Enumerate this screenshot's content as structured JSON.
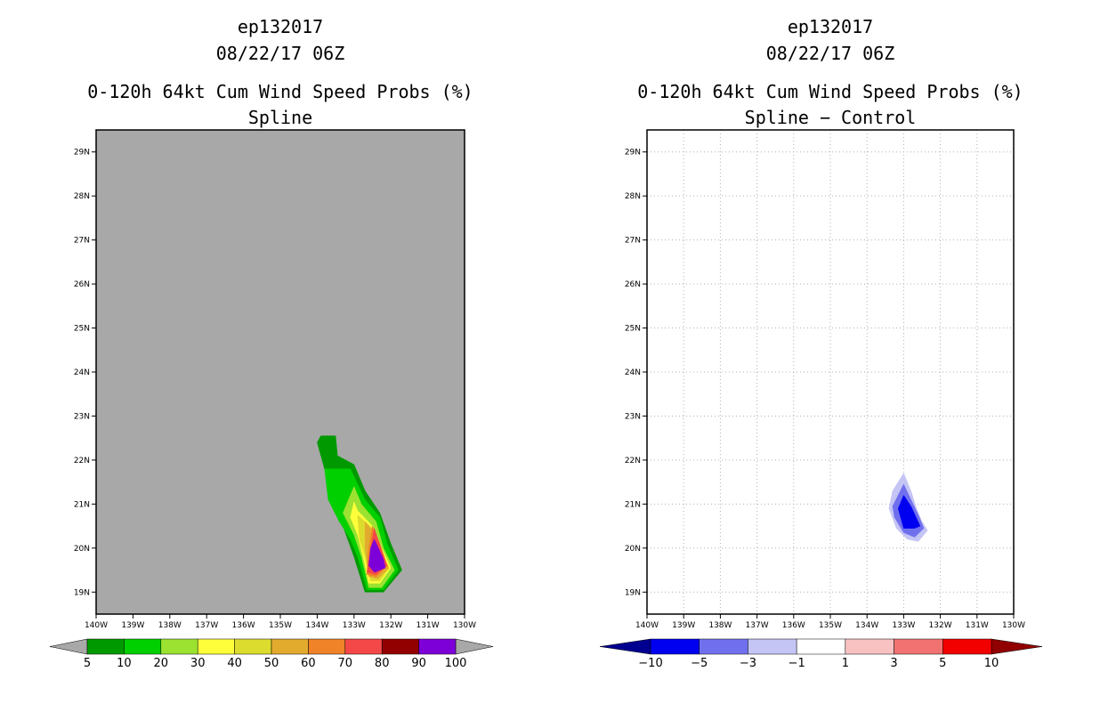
{
  "chart_data": [
    {
      "type": "heatmap",
      "storm_id": "ep132017",
      "datetime": "08/22/17 06Z",
      "title": "0-120h 64kt Cum Wind Speed Probs (%)",
      "subtitle": "Spline",
      "xlim": [
        -140,
        -130
      ],
      "ylim": [
        18.5,
        29.5
      ],
      "x_tick_labels": [
        "140W",
        "139W",
        "138W",
        "137W",
        "136W",
        "135W",
        "134W",
        "133W",
        "132W",
        "131W",
        "130W"
      ],
      "y_tick_labels": [
        "19N",
        "20N",
        "21N",
        "22N",
        "23N",
        "24N",
        "25N",
        "26N",
        "27N",
        "28N",
        "29N"
      ],
      "grid": false,
      "colorbar": {
        "levels": [
          "5",
          "10",
          "20",
          "30",
          "40",
          "50",
          "60",
          "70",
          "80",
          "90",
          "100"
        ],
        "colors": [
          "#009a00",
          "#00cf00",
          "#9be231",
          "#fefe3a",
          "#dcdc2e",
          "#e3ab2e",
          "#f08228",
          "#f44747",
          "#930000",
          "#7e00d8"
        ],
        "extend_color": "#a8a8a8"
      },
      "contours": [
        {
          "level": 5,
          "color": "#009a00",
          "points": [
            [
              -133.9,
              22.55
            ],
            [
              -133.5,
              22.55
            ],
            [
              -133.45,
              22.1
            ],
            [
              -133.0,
              21.9
            ],
            [
              -132.7,
              21.3
            ],
            [
              -132.3,
              20.8
            ],
            [
              -132.0,
              20.1
            ],
            [
              -131.7,
              19.5
            ],
            [
              -132.2,
              19.0
            ],
            [
              -132.7,
              19.0
            ],
            [
              -133.0,
              19.8
            ],
            [
              -133.3,
              20.5
            ],
            [
              -133.6,
              21.1
            ],
            [
              -133.8,
              21.8
            ],
            [
              -134.0,
              22.4
            ]
          ]
        },
        {
          "level": 10,
          "color": "#00cf00",
          "points": [
            [
              -133.8,
              21.8
            ],
            [
              -133.1,
              21.8
            ],
            [
              -132.7,
              21.1
            ],
            [
              -132.3,
              20.7
            ],
            [
              -132.1,
              20.1
            ],
            [
              -131.8,
              19.5
            ],
            [
              -132.2,
              19.05
            ],
            [
              -132.65,
              19.05
            ],
            [
              -132.9,
              19.8
            ],
            [
              -133.1,
              20.2
            ],
            [
              -133.4,
              20.6
            ],
            [
              -133.7,
              21.1
            ]
          ]
        },
        {
          "level": 20,
          "color": "#9be231",
          "points": [
            [
              -133.0,
              21.4
            ],
            [
              -132.8,
              21.0
            ],
            [
              -132.4,
              20.6
            ],
            [
              -132.2,
              20.0
            ],
            [
              -131.9,
              19.5
            ],
            [
              -132.25,
              19.1
            ],
            [
              -132.6,
              19.1
            ],
            [
              -132.8,
              19.8
            ],
            [
              -133.0,
              20.3
            ],
            [
              -133.3,
              20.8
            ]
          ]
        },
        {
          "level": 30,
          "color": "#fefe3a",
          "points": [
            [
              -133.0,
              21.05
            ],
            [
              -132.9,
              20.85
            ],
            [
              -132.5,
              20.5
            ],
            [
              -132.25,
              20.0
            ],
            [
              -132.0,
              19.55
            ],
            [
              -132.3,
              19.2
            ],
            [
              -132.6,
              19.2
            ],
            [
              -132.75,
              19.8
            ],
            [
              -132.9,
              20.3
            ],
            [
              -133.1,
              20.7
            ]
          ]
        },
        {
          "level": 40,
          "color": "#dcdc2e",
          "points": [
            [
              -132.9,
              20.75
            ],
            [
              -132.5,
              20.45
            ],
            [
              -132.3,
              19.95
            ],
            [
              -132.05,
              19.55
            ],
            [
              -132.3,
              19.25
            ],
            [
              -132.55,
              19.25
            ],
            [
              -132.7,
              19.8
            ],
            [
              -132.85,
              20.2
            ]
          ]
        },
        {
          "level": 50,
          "color": "#e3ab2e",
          "points": [
            [
              -132.7,
              20.6
            ],
            [
              -132.4,
              20.3
            ],
            [
              -132.3,
              19.9
            ],
            [
              -132.05,
              19.55
            ],
            [
              -132.35,
              19.3
            ],
            [
              -132.6,
              19.35
            ],
            [
              -132.7,
              20.0
            ]
          ]
        },
        {
          "level": 60,
          "color": "#f08228",
          "points": [
            [
              -132.5,
              20.5
            ],
            [
              -132.3,
              20.1
            ],
            [
              -132.1,
              19.6
            ],
            [
              -132.4,
              19.35
            ],
            [
              -132.65,
              19.4
            ],
            [
              -132.6,
              20.0
            ]
          ]
        },
        {
          "level": 70,
          "color": "#f44747",
          "points": [
            [
              -132.45,
              20.45
            ],
            [
              -132.25,
              19.95
            ],
            [
              -132.1,
              19.6
            ],
            [
              -132.4,
              19.4
            ],
            [
              -132.65,
              19.45
            ],
            [
              -132.55,
              20.0
            ]
          ]
        },
        {
          "level": 90,
          "color": "#7e00d8",
          "points": [
            [
              -132.45,
              20.2
            ],
            [
              -132.2,
              19.75
            ],
            [
              -132.15,
              19.55
            ],
            [
              -132.45,
              19.45
            ],
            [
              -132.6,
              19.6
            ],
            [
              -132.55,
              20.0
            ]
          ]
        }
      ]
    },
    {
      "type": "heatmap",
      "storm_id": "ep132017",
      "datetime": "08/22/17 06Z",
      "title": "0-120h 64kt Cum Wind Speed Probs (%)",
      "subtitle": "Spline − Control",
      "xlim": [
        -140,
        -130
      ],
      "ylim": [
        18.5,
        29.5
      ],
      "x_tick_labels": [
        "140W",
        "139W",
        "138W",
        "137W",
        "136W",
        "135W",
        "134W",
        "133W",
        "132W",
        "131W",
        "130W"
      ],
      "y_tick_labels": [
        "19N",
        "20N",
        "21N",
        "22N",
        "23N",
        "24N",
        "25N",
        "26N",
        "27N",
        "28N",
        "29N"
      ],
      "grid": true,
      "colorbar": {
        "levels": [
          "−10",
          "−5",
          "−3",
          "−1",
          "1",
          "3",
          "5",
          "10"
        ],
        "colors": [
          "#0000f0",
          "#7070ef",
          "#c4c4f5",
          "#ffffff",
          "#f8c2c2",
          "#f27272",
          "#f20000"
        ],
        "extend_low_color": "#000090",
        "extend_high_color": "#900000"
      },
      "contours": [
        {
          "level": -1,
          "color": "#c4c4f5",
          "points": [
            [
              -133.0,
              21.7
            ],
            [
              -132.8,
              21.3
            ],
            [
              -132.65,
              20.9
            ],
            [
              -132.5,
              20.6
            ],
            [
              -132.35,
              20.4
            ],
            [
              -132.6,
              20.15
            ],
            [
              -132.9,
              20.2
            ],
            [
              -133.2,
              20.45
            ],
            [
              -133.4,
              20.9
            ],
            [
              -133.3,
              21.3
            ]
          ]
        },
        {
          "level": -3,
          "color": "#7070ef",
          "points": [
            [
              -133.0,
              21.45
            ],
            [
              -132.8,
              21.1
            ],
            [
              -132.6,
              20.75
            ],
            [
              -132.45,
              20.45
            ],
            [
              -132.7,
              20.25
            ],
            [
              -133.0,
              20.35
            ],
            [
              -133.25,
              20.7
            ],
            [
              -133.3,
              20.95
            ]
          ]
        },
        {
          "level": -5,
          "color": "#0000f0",
          "points": [
            [
              -133.0,
              21.2
            ],
            [
              -132.8,
              20.95
            ],
            [
              -132.55,
              20.5
            ],
            [
              -132.7,
              20.45
            ],
            [
              -133.0,
              20.45
            ],
            [
              -133.15,
              20.9
            ]
          ]
        }
      ]
    }
  ]
}
